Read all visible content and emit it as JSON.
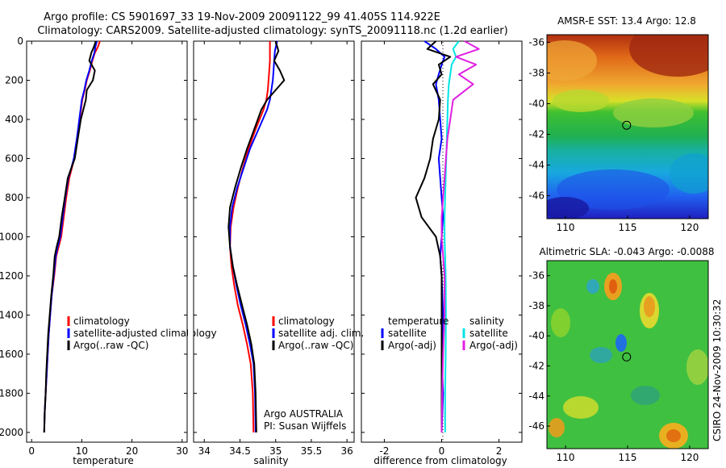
{
  "figure": {
    "title_line1": "Argo profile: CS 5901697_33 19-Nov-2009 20091122_99 41.405S 114.922E",
    "title_line2": "Climatology: CARS2009. Satellite-adjusted climatology: synTS_20091118.nc (1.2d earlier)",
    "side_caption": "CSIRO 24-Nov-2009 10:30:32",
    "argo_note_line1": "Argo AUSTRALIA",
    "argo_note_line2": "PI: Susan Wijffels"
  },
  "colors": {
    "climatology": "#ff0000",
    "satellite": "#0000ff",
    "argo": "#000000",
    "satellite_salinity": "#00e5e5",
    "argo_salinity_adj": "#e020e0"
  },
  "chart_data": [
    {
      "type": "line",
      "id": "temperature",
      "xlabel": "temperature",
      "xlim": [
        -1,
        31
      ],
      "ylim": [
        2050,
        0
      ],
      "xticks": [
        0,
        10,
        20,
        30
      ],
      "yticks": [
        0,
        200,
        400,
        600,
        800,
        1000,
        1200,
        1400,
        1600,
        1800,
        2000
      ],
      "legend_placement": "lower-center",
      "legend": [
        {
          "label": "climatology",
          "color": "#ff0000"
        },
        {
          "label": "satellite-adjusted climatology",
          "color": "#0000ff"
        },
        {
          "label": "Argo(..raw -QC)",
          "color": "#000000"
        }
      ],
      "series": [
        {
          "color": "#ff0000",
          "x": [
            13.6,
            13.2,
            12.6,
            12.1,
            11.6,
            11.0,
            10.6,
            10.1,
            9.6,
            9.1,
            8.5,
            8.0,
            7.5,
            6.9,
            6.4,
            5.9,
            5.4,
            4.9,
            4.5,
            4.0,
            3.7,
            3.4,
            3.2,
            3.0,
            2.8,
            2.6,
            2.5
          ],
          "y": [
            0,
            30,
            60,
            100,
            150,
            200,
            250,
            300,
            400,
            500,
            600,
            650,
            700,
            800,
            900,
            1000,
            1050,
            1100,
            1200,
            1300,
            1400,
            1500,
            1600,
            1700,
            1800,
            1900,
            2000
          ]
        },
        {
          "color": "#0000ff",
          "x": [
            13.0,
            12.7,
            12.5,
            12.0,
            11.5,
            10.9,
            10.5,
            10.0,
            9.5,
            9.0,
            8.4,
            7.9,
            7.3,
            6.7,
            6.2,
            5.7,
            5.2,
            4.8,
            4.4,
            4.0,
            3.7,
            3.4,
            3.2,
            3.0,
            2.8,
            2.6,
            2.5
          ],
          "y": [
            0,
            30,
            60,
            100,
            150,
            200,
            250,
            300,
            400,
            500,
            600,
            650,
            700,
            800,
            900,
            1000,
            1050,
            1100,
            1200,
            1300,
            1400,
            1500,
            1600,
            1700,
            1800,
            1900,
            2000
          ]
        },
        {
          "color": "#000000",
          "x": [
            12.8,
            12.4,
            11.9,
            11.5,
            12.6,
            12.2,
            11.0,
            10.8,
            9.8,
            9.2,
            8.6,
            7.9,
            7.2,
            6.6,
            6.0,
            5.5,
            5.0,
            4.6,
            4.3,
            3.9,
            3.6,
            3.3,
            3.1,
            2.9,
            2.8,
            2.6,
            2.5
          ],
          "y": [
            0,
            30,
            60,
            100,
            150,
            200,
            250,
            300,
            400,
            500,
            600,
            650,
            700,
            800,
            900,
            1000,
            1050,
            1100,
            1200,
            1300,
            1400,
            1500,
            1600,
            1700,
            1800,
            1900,
            2000
          ]
        }
      ]
    },
    {
      "type": "line",
      "id": "salinity",
      "xlabel": "salinity",
      "xlim": [
        33.85,
        36.1
      ],
      "ylim": [
        2050,
        0
      ],
      "xticks": [
        34,
        34.5,
        35,
        35.5,
        36
      ],
      "legend_placement": "lower-right",
      "legend": [
        {
          "label": "climatology",
          "color": "#ff0000"
        },
        {
          "label": "satellite adj. clim.",
          "color": "#0000ff"
        },
        {
          "label": "Argo(..raw -QC)",
          "color": "#000000"
        }
      ],
      "series": [
        {
          "color": "#ff0000",
          "x": [
            34.92,
            34.92,
            34.92,
            34.91,
            34.9,
            34.89,
            34.87,
            34.83,
            34.72,
            34.62,
            34.54,
            34.47,
            34.41,
            34.37,
            34.36,
            34.38,
            34.42,
            34.47,
            34.54,
            34.6,
            34.65,
            34.68,
            34.69
          ],
          "y": [
            0,
            50,
            100,
            150,
            200,
            250,
            300,
            350,
            450,
            550,
            650,
            750,
            850,
            950,
            1050,
            1150,
            1250,
            1350,
            1450,
            1550,
            1650,
            1800,
            2000
          ]
        },
        {
          "color": "#0000ff",
          "x": [
            35.02,
            34.99,
            34.98,
            34.97,
            34.96,
            34.94,
            34.92,
            34.88,
            34.76,
            34.64,
            34.55,
            34.46,
            34.39,
            34.36,
            34.36,
            34.4,
            34.45,
            34.51,
            34.58,
            34.64,
            34.69,
            34.71,
            34.72
          ],
          "y": [
            0,
            50,
            100,
            150,
            200,
            250,
            300,
            350,
            450,
            550,
            650,
            750,
            850,
            950,
            1050,
            1150,
            1250,
            1350,
            1450,
            1550,
            1650,
            1800,
            2000
          ]
        },
        {
          "color": "#000000",
          "x": [
            35.0,
            35.04,
            34.98,
            35.06,
            35.12,
            35.0,
            34.88,
            34.8,
            34.7,
            34.6,
            34.51,
            34.43,
            34.36,
            34.34,
            34.36,
            34.4,
            34.46,
            34.53,
            34.6,
            34.66,
            34.7,
            34.72,
            34.73
          ],
          "y": [
            0,
            50,
            100,
            150,
            200,
            250,
            300,
            350,
            450,
            550,
            650,
            750,
            850,
            950,
            1050,
            1150,
            1250,
            1350,
            1450,
            1550,
            1650,
            1800,
            2000
          ]
        }
      ]
    },
    {
      "type": "line",
      "id": "difference",
      "xlabel": "difference from climatology",
      "xlim": [
        -2.8,
        2.8
      ],
      "ylim": [
        2050,
        0
      ],
      "xticks": [
        -2,
        0,
        2
      ],
      "legend_placement": "lower-center",
      "legend_left_title": "temperature",
      "legend_right_title": "salinity",
      "legend": [
        {
          "label": "satellite",
          "color": "#0000ff"
        },
        {
          "label": "Argo(-adj)",
          "color": "#000000"
        },
        {
          "label": "satellite",
          "color": "#00e5e5"
        },
        {
          "label": "Argo(-adj)",
          "color": "#e020e0"
        }
      ],
      "series": [
        {
          "color": "#0000ff",
          "x": [
            -0.6,
            -0.2,
            0.1,
            0.0,
            -0.1,
            -0.2,
            -0.1,
            -0.05,
            0.0,
            -0.1,
            -0.05,
            0.0,
            0.05,
            0.0,
            -0.05,
            0.0,
            0.05,
            0.0,
            0.05,
            0.0
          ],
          "y": [
            0,
            40,
            80,
            120,
            170,
            220,
            300,
            400,
            500,
            600,
            700,
            800,
            900,
            1000,
            1100,
            1200,
            1400,
            1600,
            1800,
            2000
          ]
        },
        {
          "color": "#000000",
          "x": [
            -0.2,
            -0.5,
            0.3,
            -0.1,
            0.0,
            -0.3,
            -0.05,
            -0.1,
            -0.3,
            -0.4,
            -0.6,
            -0.9,
            -0.7,
            -0.2,
            -0.05,
            0.0,
            0.0,
            0.0,
            0.0,
            0.0
          ],
          "y": [
            0,
            40,
            80,
            120,
            170,
            220,
            300,
            400,
            500,
            600,
            700,
            800,
            900,
            1000,
            1100,
            1200,
            1400,
            1600,
            1800,
            2000
          ]
        },
        {
          "color": "#00e5e5",
          "x": [
            0.6,
            0.4,
            0.5,
            0.35,
            0.3,
            0.25,
            0.22,
            0.2,
            0.18,
            0.16,
            0.14,
            0.12,
            0.1,
            0.1,
            0.12,
            0.14,
            0.15,
            0.14,
            0.12,
            0.12
          ],
          "y": [
            0,
            40,
            80,
            120,
            170,
            220,
            300,
            400,
            500,
            600,
            700,
            800,
            900,
            1000,
            1100,
            1200,
            1400,
            1600,
            1800,
            2000
          ]
        },
        {
          "color": "#e020e0",
          "x": [
            0.8,
            1.3,
            0.5,
            1.2,
            0.6,
            1.1,
            0.4,
            0.3,
            0.2,
            0.15,
            0.1,
            0.05,
            0.0,
            0.0,
            0.05,
            0.1,
            0.1,
            0.05,
            0.02,
            0.0
          ],
          "y": [
            0,
            40,
            80,
            120,
            170,
            220,
            300,
            400,
            500,
            600,
            700,
            800,
            900,
            1000,
            1100,
            1200,
            1400,
            1600,
            1800,
            2000
          ]
        }
      ]
    },
    {
      "type": "heatmap",
      "id": "sst-map",
      "title": "AMSR-E SST: 13.4 Argo: 12.8",
      "xlim": [
        108.5,
        121.5
      ],
      "ylim": [
        -47.5,
        -35.5
      ],
      "xticks": [
        110,
        115,
        120
      ],
      "yticks": [
        -36,
        -38,
        -40,
        -42,
        -44,
        -46
      ],
      "marker": {
        "lon": 114.922,
        "lat": -41.405
      }
    },
    {
      "type": "heatmap",
      "id": "sla-map",
      "title": "Altimetric SLA: -0.043 Argo: -0.0088",
      "xlim": [
        108.5,
        121.5
      ],
      "ylim": [
        -47.5,
        -35.0
      ],
      "xticks": [
        110,
        115,
        120
      ],
      "yticks": [
        -36,
        -38,
        -40,
        -42,
        -44,
        -46
      ],
      "marker": {
        "lon": 114.922,
        "lat": -41.405
      }
    }
  ]
}
